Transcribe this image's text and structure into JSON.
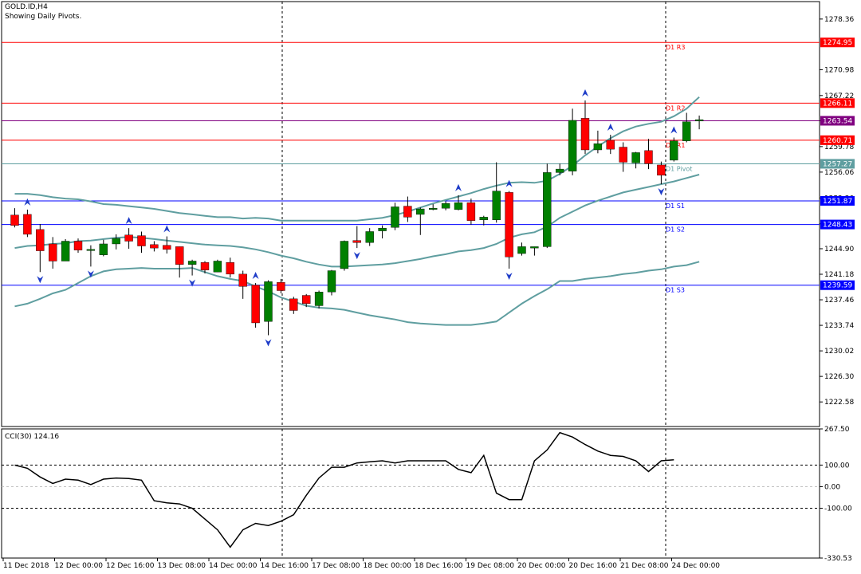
{
  "header": {
    "symbol_line": "GOLD.ID,H4",
    "pivot_note": "Showing Daily Pivots."
  },
  "colors": {
    "bull": "#008000",
    "bear": "#ff0000",
    "bollinger": "#5f9ea0",
    "resistance": "#ff0000",
    "support": "#0000ff",
    "pivot": "#5f9ea0",
    "cci_line": "#000000",
    "fractal": "#1e3cc8"
  },
  "chart_data": [
    {
      "type": "candlestick",
      "title": "GOLD.ID,H4",
      "ylim": [
        1219.0,
        1280.9
      ],
      "y_ticks": [
        "1278.36",
        "1270.98",
        "1267.22",
        "1263.54",
        "1259.78",
        "1256.06",
        "1252.30",
        "1248.52",
        "1244.90",
        "1241.18",
        "1237.46",
        "1233.74",
        "1230.02",
        "1226.30",
        "1222.58"
      ],
      "x_labels": [
        "11 Dec 2018",
        "12 Dec 00:00",
        "12 Dec 16:00",
        "13 Dec 08:00",
        "14 Dec 00:00",
        "14 Dec 16:00",
        "17 Dec 08:00",
        "18 Dec 00:00",
        "18 Dec 16:00",
        "19 Dec 08:00",
        "20 Dec 00:00",
        "20 Dec 16:00",
        "21 Dec 08:00",
        "24 Dec 00:00"
      ],
      "vertical_separators": [
        "14 Dec 16:00",
        "24 Dec 00:00"
      ],
      "candles": [
        {
          "o": 1249.8,
          "h": 1250.8,
          "l": 1248.0,
          "c": 1248.3
        },
        {
          "o": 1249.9,
          "h": 1250.6,
          "l": 1246.6,
          "c": 1247.0
        },
        {
          "o": 1247.7,
          "h": 1248.5,
          "l": 1241.5,
          "c": 1244.6
        },
        {
          "o": 1245.6,
          "h": 1246.6,
          "l": 1242.0,
          "c": 1243.1
        },
        {
          "o": 1243.1,
          "h": 1246.3,
          "l": 1243.1,
          "c": 1246.0
        },
        {
          "o": 1246.0,
          "h": 1246.4,
          "l": 1244.3,
          "c": 1244.7
        },
        {
          "o": 1244.8,
          "h": 1245.4,
          "l": 1242.3,
          "c": 1244.8
        },
        {
          "o": 1244.0,
          "h": 1246.2,
          "l": 1243.8,
          "c": 1245.6
        },
        {
          "o": 1245.6,
          "h": 1247.0,
          "l": 1244.8,
          "c": 1246.4
        },
        {
          "o": 1246.9,
          "h": 1247.9,
          "l": 1244.9,
          "c": 1246.0
        },
        {
          "o": 1246.8,
          "h": 1247.4,
          "l": 1244.3,
          "c": 1245.3
        },
        {
          "o": 1245.5,
          "h": 1246.0,
          "l": 1244.5,
          "c": 1245.0
        },
        {
          "o": 1245.4,
          "h": 1246.7,
          "l": 1244.2,
          "c": 1244.8
        },
        {
          "o": 1245.2,
          "h": 1245.2,
          "l": 1240.7,
          "c": 1242.6
        },
        {
          "o": 1242.6,
          "h": 1243.3,
          "l": 1241.0,
          "c": 1243.1
        },
        {
          "o": 1242.9,
          "h": 1243.1,
          "l": 1241.3,
          "c": 1241.8
        },
        {
          "o": 1241.5,
          "h": 1243.3,
          "l": 1241.5,
          "c": 1243.1
        },
        {
          "o": 1242.9,
          "h": 1243.6,
          "l": 1240.7,
          "c": 1241.2
        },
        {
          "o": 1241.2,
          "h": 1241.7,
          "l": 1237.6,
          "c": 1239.4
        },
        {
          "o": 1239.6,
          "h": 1239.9,
          "l": 1233.4,
          "c": 1234.1
        },
        {
          "o": 1234.3,
          "h": 1240.3,
          "l": 1232.3,
          "c": 1240.1
        },
        {
          "o": 1240.0,
          "h": 1240.5,
          "l": 1238.4,
          "c": 1238.8
        },
        {
          "o": 1237.6,
          "h": 1237.9,
          "l": 1235.4,
          "c": 1235.9
        },
        {
          "o": 1238.1,
          "h": 1238.3,
          "l": 1236.4,
          "c": 1236.9
        },
        {
          "o": 1236.6,
          "h": 1238.8,
          "l": 1236.2,
          "c": 1238.6
        },
        {
          "o": 1238.6,
          "h": 1241.8,
          "l": 1238.1,
          "c": 1241.7
        },
        {
          "o": 1242.0,
          "h": 1246.1,
          "l": 1241.7,
          "c": 1246.0
        },
        {
          "o": 1246.1,
          "h": 1248.2,
          "l": 1245.0,
          "c": 1245.8
        },
        {
          "o": 1245.8,
          "h": 1247.9,
          "l": 1245.3,
          "c": 1247.4
        },
        {
          "o": 1247.5,
          "h": 1248.3,
          "l": 1246.4,
          "c": 1247.9
        },
        {
          "o": 1248.0,
          "h": 1251.6,
          "l": 1247.6,
          "c": 1251.0
        },
        {
          "o": 1251.1,
          "h": 1252.5,
          "l": 1248.8,
          "c": 1249.5
        },
        {
          "o": 1249.9,
          "h": 1250.9,
          "l": 1246.9,
          "c": 1250.7
        },
        {
          "o": 1250.8,
          "h": 1251.4,
          "l": 1250.5,
          "c": 1250.8
        },
        {
          "o": 1250.8,
          "h": 1251.8,
          "l": 1250.5,
          "c": 1251.5
        },
        {
          "o": 1250.6,
          "h": 1252.7,
          "l": 1250.5,
          "c": 1251.6
        },
        {
          "o": 1251.6,
          "h": 1252.2,
          "l": 1248.4,
          "c": 1249.0
        },
        {
          "o": 1249.1,
          "h": 1249.7,
          "l": 1248.3,
          "c": 1249.5
        },
        {
          "o": 1249.1,
          "h": 1257.5,
          "l": 1248.7,
          "c": 1253.3
        },
        {
          "o": 1253.1,
          "h": 1253.3,
          "l": 1242.0,
          "c": 1243.7
        },
        {
          "o": 1244.2,
          "h": 1245.8,
          "l": 1243.9,
          "c": 1245.2
        },
        {
          "o": 1245.0,
          "h": 1245.2,
          "l": 1243.9,
          "c": 1245.2
        },
        {
          "o": 1245.2,
          "h": 1257.3,
          "l": 1245.0,
          "c": 1256.0
        },
        {
          "o": 1256.0,
          "h": 1257.3,
          "l": 1255.6,
          "c": 1256.5
        },
        {
          "o": 1256.2,
          "h": 1265.3,
          "l": 1255.6,
          "c": 1263.6
        },
        {
          "o": 1263.9,
          "h": 1266.5,
          "l": 1258.7,
          "c": 1259.3
        },
        {
          "o": 1259.3,
          "h": 1262.1,
          "l": 1258.8,
          "c": 1260.2
        },
        {
          "o": 1260.7,
          "h": 1261.5,
          "l": 1258.7,
          "c": 1259.4
        },
        {
          "o": 1259.7,
          "h": 1260.4,
          "l": 1256.1,
          "c": 1257.5
        },
        {
          "o": 1257.4,
          "h": 1259.0,
          "l": 1256.6,
          "c": 1258.9
        },
        {
          "o": 1259.2,
          "h": 1260.9,
          "l": 1256.5,
          "c": 1257.3
        },
        {
          "o": 1257.1,
          "h": 1257.6,
          "l": 1254.3,
          "c": 1255.6
        },
        {
          "o": 1257.8,
          "h": 1261.1,
          "l": 1257.6,
          "c": 1260.6
        },
        {
          "o": 1260.6,
          "h": 1264.7,
          "l": 1260.4,
          "c": 1263.4
        },
        {
          "o": 1263.5,
          "h": 1264.3,
          "l": 1262.3,
          "c": 1263.7
        }
      ],
      "bollinger_upper": [
        1252.9,
        1252.9,
        1252.7,
        1252.4,
        1252.2,
        1252.1,
        1251.8,
        1251.4,
        1251.3,
        1251.1,
        1250.9,
        1250.7,
        1250.4,
        1250.1,
        1249.9,
        1249.7,
        1249.5,
        1249.5,
        1249.3,
        1249.4,
        1249.3,
        1249.0,
        1249.0,
        1249.0,
        1249.0,
        1249.0,
        1249.0,
        1249.0,
        1249.2,
        1249.4,
        1249.8,
        1250.3,
        1250.9,
        1251.5,
        1252.0,
        1252.5,
        1253.0,
        1253.6,
        1254.1,
        1254.5,
        1254.6,
        1254.5,
        1254.8,
        1255.8,
        1257.0,
        1258.5,
        1259.8,
        1261.0,
        1262.0,
        1262.7,
        1263.1,
        1263.4,
        1264.2,
        1265.3,
        1267.0
      ],
      "bollinger_middle": [
        1245.0,
        1245.3,
        1245.4,
        1245.6,
        1245.7,
        1246.0,
        1246.1,
        1246.3,
        1246.5,
        1246.6,
        1246.5,
        1246.3,
        1246.1,
        1245.9,
        1245.7,
        1245.5,
        1245.4,
        1245.3,
        1245.1,
        1244.8,
        1244.4,
        1243.9,
        1243.5,
        1243.0,
        1242.6,
        1242.3,
        1242.3,
        1242.4,
        1242.5,
        1242.6,
        1242.8,
        1243.1,
        1243.4,
        1243.8,
        1244.1,
        1244.5,
        1244.7,
        1245.0,
        1245.6,
        1246.5,
        1247.0,
        1247.3,
        1248.1,
        1249.4,
        1250.3,
        1251.2,
        1251.9,
        1252.5,
        1253.1,
        1253.5,
        1253.9,
        1254.3,
        1254.7,
        1255.2,
        1255.7
      ],
      "bollinger_lower": [
        1236.5,
        1236.9,
        1237.6,
        1238.4,
        1238.9,
        1239.9,
        1240.9,
        1241.6,
        1241.9,
        1242.0,
        1242.1,
        1242.0,
        1242.0,
        1242.0,
        1242.1,
        1241.5,
        1240.9,
        1240.5,
        1240.2,
        1239.4,
        1238.7,
        1237.8,
        1237.2,
        1236.6,
        1236.3,
        1236.2,
        1236.0,
        1235.6,
        1235.2,
        1234.9,
        1234.6,
        1234.2,
        1234.0,
        1233.9,
        1233.8,
        1233.8,
        1233.8,
        1234.0,
        1234.3,
        1235.6,
        1236.9,
        1238.0,
        1239.0,
        1240.2,
        1240.2,
        1240.5,
        1240.7,
        1240.9,
        1241.2,
        1241.4,
        1241.7,
        1241.9,
        1242.3,
        1242.5,
        1243.0
      ],
      "fractals_up": [
        1,
        9,
        12,
        19,
        35,
        39,
        45,
        47,
        52
      ],
      "fractals_down": [
        2,
        6,
        14,
        20,
        27,
        39,
        51
      ],
      "pivot_levels": [
        {
          "label": "D1 R3",
          "value": 1274.95,
          "kind": "resistance"
        },
        {
          "label": "D1 R2",
          "value": 1266.11,
          "kind": "resistance"
        },
        {
          "label": "",
          "value": 1263.54,
          "kind": "current"
        },
        {
          "label": "D1 R1",
          "value": 1260.71,
          "kind": "resistance"
        },
        {
          "label": "D1 Pivot",
          "value": 1257.27,
          "kind": "pivot"
        },
        {
          "label": "D1 S1",
          "value": 1251.87,
          "kind": "support"
        },
        {
          "label": "D1 S2",
          "value": 1248.43,
          "kind": "support"
        },
        {
          "label": "D1 S3",
          "value": 1239.59,
          "kind": "support"
        }
      ]
    },
    {
      "type": "line",
      "title": "CCI(30) 124.16",
      "ylim": [
        -330.53,
        267.5
      ],
      "y_ticks": [
        "267.50",
        "100.00",
        "0.00",
        "-100.00",
        "-330.53"
      ],
      "reference_levels": [
        100,
        -100
      ],
      "values": [
        100,
        85,
        45,
        15,
        35,
        30,
        10,
        35,
        40,
        38,
        30,
        -65,
        -75,
        -80,
        -100,
        -150,
        -200,
        -280,
        -200,
        -170,
        -180,
        -160,
        -130,
        -40,
        40,
        90,
        90,
        110,
        115,
        120,
        110,
        120,
        120,
        120,
        120,
        80,
        65,
        145,
        -30,
        -60,
        -60,
        120,
        170,
        250,
        230,
        195,
        165,
        145,
        140,
        120,
        70,
        120,
        124.16
      ]
    }
  ]
}
